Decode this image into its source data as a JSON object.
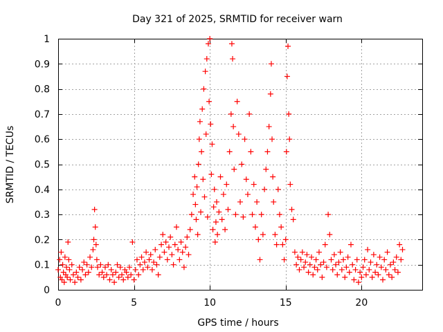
{
  "chart_data": {
    "type": "scatter",
    "title": "Day 321 of 2025, SRMTID for receiver warn",
    "xlabel": "GPS time / hours",
    "ylabel": "SRMTID / TECUs",
    "xlim": [
      0,
      24
    ],
    "ylim": [
      0,
      1
    ],
    "xticks": [
      0,
      5,
      10,
      15,
      20
    ],
    "yticks": [
      0,
      0.1,
      0.2,
      0.3,
      0.4,
      0.5,
      0.6,
      0.7,
      0.8,
      0.9,
      1
    ],
    "grid": true,
    "marker": "+",
    "series": [
      {
        "name": "SRMTID",
        "color": "#ff0000",
        "points": [
          [
            0.0,
            0.08
          ],
          [
            0.1,
            0.12
          ],
          [
            0.15,
            0.05
          ],
          [
            0.2,
            0.15
          ],
          [
            0.25,
            0.04
          ],
          [
            0.3,
            0.1
          ],
          [
            0.35,
            0.07
          ],
          [
            0.4,
            0.03
          ],
          [
            0.45,
            0.13
          ],
          [
            0.5,
            0.06
          ],
          [
            0.55,
            0.09
          ],
          [
            0.6,
            0.05
          ],
          [
            0.65,
            0.19
          ],
          [
            0.7,
            0.12
          ],
          [
            0.75,
            0.08
          ],
          [
            0.8,
            0.04
          ],
          [
            0.9,
            0.1
          ],
          [
            1.0,
            0.06
          ],
          [
            1.1,
            0.03
          ],
          [
            1.2,
            0.07
          ],
          [
            1.3,
            0.05
          ],
          [
            1.4,
            0.09
          ],
          [
            1.5,
            0.04
          ],
          [
            1.6,
            0.08
          ],
          [
            1.7,
            0.11
          ],
          [
            1.8,
            0.06
          ],
          [
            1.9,
            0.1
          ],
          [
            2.0,
            0.07
          ],
          [
            2.1,
            0.13
          ],
          [
            2.2,
            0.09
          ],
          [
            2.3,
            0.16
          ],
          [
            2.35,
            0.2
          ],
          [
            2.4,
            0.32
          ],
          [
            2.45,
            0.25
          ],
          [
            2.5,
            0.18
          ],
          [
            2.55,
            0.12
          ],
          [
            2.6,
            0.09
          ],
          [
            2.7,
            0.06
          ],
          [
            2.8,
            0.1
          ],
          [
            2.9,
            0.07
          ],
          [
            3.0,
            0.05
          ],
          [
            3.1,
            0.09
          ],
          [
            3.2,
            0.06
          ],
          [
            3.3,
            0.1
          ],
          [
            3.4,
            0.04
          ],
          [
            3.5,
            0.08
          ],
          [
            3.6,
            0.06
          ],
          [
            3.7,
            0.03
          ],
          [
            3.8,
            0.07
          ],
          [
            3.9,
            0.1
          ],
          [
            4.0,
            0.05
          ],
          [
            4.1,
            0.09
          ],
          [
            4.2,
            0.06
          ],
          [
            4.3,
            0.04
          ],
          [
            4.4,
            0.08
          ],
          [
            4.5,
            0.07
          ],
          [
            4.6,
            0.05
          ],
          [
            4.7,
            0.09
          ],
          [
            4.8,
            0.06
          ],
          [
            4.9,
            0.19
          ],
          [
            5.0,
            0.04
          ],
          [
            5.1,
            0.08
          ],
          [
            5.2,
            0.12
          ],
          [
            5.3,
            0.06
          ],
          [
            5.4,
            0.1
          ],
          [
            5.5,
            0.13
          ],
          [
            5.6,
            0.08
          ],
          [
            5.7,
            0.11
          ],
          [
            5.8,
            0.15
          ],
          [
            5.9,
            0.09
          ],
          [
            6.0,
            0.12
          ],
          [
            6.1,
            0.14
          ],
          [
            6.2,
            0.08
          ],
          [
            6.3,
            0.11
          ],
          [
            6.4,
            0.16
          ],
          [
            6.5,
            0.1
          ],
          [
            6.6,
            0.06
          ],
          [
            6.7,
            0.13
          ],
          [
            6.8,
            0.18
          ],
          [
            6.9,
            0.22
          ],
          [
            7.0,
            0.15
          ],
          [
            7.1,
            0.19
          ],
          [
            7.2,
            0.12
          ],
          [
            7.3,
            0.17
          ],
          [
            7.4,
            0.21
          ],
          [
            7.5,
            0.14
          ],
          [
            7.6,
            0.1
          ],
          [
            7.7,
            0.18
          ],
          [
            7.8,
            0.25
          ],
          [
            7.9,
            0.16
          ],
          [
            8.0,
            0.12
          ],
          [
            8.1,
            0.19
          ],
          [
            8.2,
            0.15
          ],
          [
            8.3,
            0.09
          ],
          [
            8.4,
            0.17
          ],
          [
            8.5,
            0.21
          ],
          [
            8.6,
            0.14
          ],
          [
            8.7,
            0.24
          ],
          [
            8.8,
            0.3
          ],
          [
            8.9,
            0.38
          ],
          [
            9.0,
            0.45
          ],
          [
            9.05,
            0.34
          ],
          [
            9.1,
            0.28
          ],
          [
            9.15,
            0.41
          ],
          [
            9.2,
            0.22
          ],
          [
            9.25,
            0.5
          ],
          [
            9.3,
            0.6
          ],
          [
            9.35,
            0.67
          ],
          [
            9.4,
            0.31
          ],
          [
            9.45,
            0.55
          ],
          [
            9.5,
            0.72
          ],
          [
            9.55,
            0.44
          ],
          [
            9.6,
            0.8
          ],
          [
            9.65,
            0.37
          ],
          [
            9.7,
            0.87
          ],
          [
            9.75,
            0.62
          ],
          [
            9.8,
            0.92
          ],
          [
            9.85,
            0.29
          ],
          [
            9.9,
            0.98
          ],
          [
            9.95,
            0.75
          ],
          [
            10.0,
            1.0
          ],
          [
            10.05,
            0.66
          ],
          [
            10.1,
            0.46
          ],
          [
            10.15,
            0.58
          ],
          [
            10.2,
            0.24
          ],
          [
            10.25,
            0.33
          ],
          [
            10.3,
            0.4
          ],
          [
            10.35,
            0.19
          ],
          [
            10.4,
            0.27
          ],
          [
            10.45,
            0.35
          ],
          [
            10.5,
            0.22
          ],
          [
            10.6,
            0.31
          ],
          [
            10.7,
            0.45
          ],
          [
            10.8,
            0.28
          ],
          [
            10.9,
            0.38
          ],
          [
            11.0,
            0.24
          ],
          [
            11.1,
            0.42
          ],
          [
            11.2,
            0.32
          ],
          [
            11.3,
            0.55
          ],
          [
            11.4,
            0.7
          ],
          [
            11.45,
            0.98
          ],
          [
            11.5,
            0.92
          ],
          [
            11.55,
            0.65
          ],
          [
            11.6,
            0.48
          ],
          [
            11.7,
            0.3
          ],
          [
            11.8,
            0.75
          ],
          [
            11.9,
            0.62
          ],
          [
            12.0,
            0.35
          ],
          [
            12.1,
            0.5
          ],
          [
            12.2,
            0.29
          ],
          [
            12.3,
            0.6
          ],
          [
            12.4,
            0.44
          ],
          [
            12.5,
            0.38
          ],
          [
            12.6,
            0.7
          ],
          [
            12.7,
            0.55
          ],
          [
            12.8,
            0.3
          ],
          [
            12.9,
            0.42
          ],
          [
            13.0,
            0.25
          ],
          [
            13.1,
            0.35
          ],
          [
            13.2,
            0.2
          ],
          [
            13.3,
            0.12
          ],
          [
            13.4,
            0.3
          ],
          [
            13.5,
            0.22
          ],
          [
            13.6,
            0.4
          ],
          [
            13.7,
            0.48
          ],
          [
            13.8,
            0.55
          ],
          [
            13.9,
            0.65
          ],
          [
            14.0,
            0.78
          ],
          [
            14.05,
            0.9
          ],
          [
            14.1,
            0.6
          ],
          [
            14.15,
            0.45
          ],
          [
            14.2,
            0.35
          ],
          [
            14.3,
            0.22
          ],
          [
            14.4,
            0.18
          ],
          [
            14.5,
            0.4
          ],
          [
            14.6,
            0.3
          ],
          [
            14.7,
            0.25
          ],
          [
            14.8,
            0.18
          ],
          [
            14.9,
            0.12
          ],
          [
            15.0,
            0.2
          ],
          [
            15.05,
            0.55
          ],
          [
            15.1,
            0.85
          ],
          [
            15.15,
            0.97
          ],
          [
            15.2,
            0.7
          ],
          [
            15.25,
            0.6
          ],
          [
            15.3,
            0.42
          ],
          [
            15.4,
            0.32
          ],
          [
            15.5,
            0.28
          ],
          [
            15.6,
            0.15
          ],
          [
            15.7,
            0.1
          ],
          [
            15.8,
            0.13
          ],
          [
            15.9,
            0.08
          ],
          [
            16.0,
            0.12
          ],
          [
            16.1,
            0.15
          ],
          [
            16.2,
            0.09
          ],
          [
            16.3,
            0.11
          ],
          [
            16.4,
            0.14
          ],
          [
            16.5,
            0.07
          ],
          [
            16.6,
            0.1
          ],
          [
            16.7,
            0.13
          ],
          [
            16.8,
            0.06
          ],
          [
            16.9,
            0.09
          ],
          [
            17.0,
            0.12
          ],
          [
            17.1,
            0.08
          ],
          [
            17.2,
            0.15
          ],
          [
            17.3,
            0.1
          ],
          [
            17.4,
            0.05
          ],
          [
            17.5,
            0.11
          ],
          [
            17.6,
            0.18
          ],
          [
            17.7,
            0.09
          ],
          [
            17.8,
            0.3
          ],
          [
            17.9,
            0.22
          ],
          [
            18.0,
            0.12
          ],
          [
            18.1,
            0.08
          ],
          [
            18.2,
            0.14
          ],
          [
            18.3,
            0.1
          ],
          [
            18.4,
            0.06
          ],
          [
            18.5,
            0.11
          ],
          [
            18.6,
            0.15
          ],
          [
            18.7,
            0.08
          ],
          [
            18.8,
            0.12
          ],
          [
            18.9,
            0.05
          ],
          [
            19.0,
            0.09
          ],
          [
            19.1,
            0.13
          ],
          [
            19.2,
            0.07
          ],
          [
            19.3,
            0.18
          ],
          [
            19.4,
            0.1
          ],
          [
            19.5,
            0.04
          ],
          [
            19.6,
            0.08
          ],
          [
            19.7,
            0.12
          ],
          [
            19.8,
            0.03
          ],
          [
            19.9,
            0.07
          ],
          [
            20.0,
            0.05
          ],
          [
            20.1,
            0.09
          ],
          [
            20.2,
            0.12
          ],
          [
            20.3,
            0.06
          ],
          [
            20.4,
            0.16
          ],
          [
            20.5,
            0.08
          ],
          [
            20.6,
            0.11
          ],
          [
            20.7,
            0.05
          ],
          [
            20.8,
            0.14
          ],
          [
            20.9,
            0.07
          ],
          [
            21.0,
            0.1
          ],
          [
            21.1,
            0.06
          ],
          [
            21.2,
            0.13
          ],
          [
            21.3,
            0.09
          ],
          [
            21.4,
            0.04
          ],
          [
            21.5,
            0.12
          ],
          [
            21.6,
            0.08
          ],
          [
            21.7,
            0.15
          ],
          [
            21.8,
            0.06
          ],
          [
            21.9,
            0.1
          ],
          [
            22.0,
            0.05
          ],
          [
            22.1,
            0.11
          ],
          [
            22.2,
            0.08
          ],
          [
            22.3,
            0.13
          ],
          [
            22.4,
            0.07
          ],
          [
            22.5,
            0.18
          ],
          [
            22.6,
            0.12
          ],
          [
            22.7,
            0.16
          ]
        ]
      }
    ]
  }
}
